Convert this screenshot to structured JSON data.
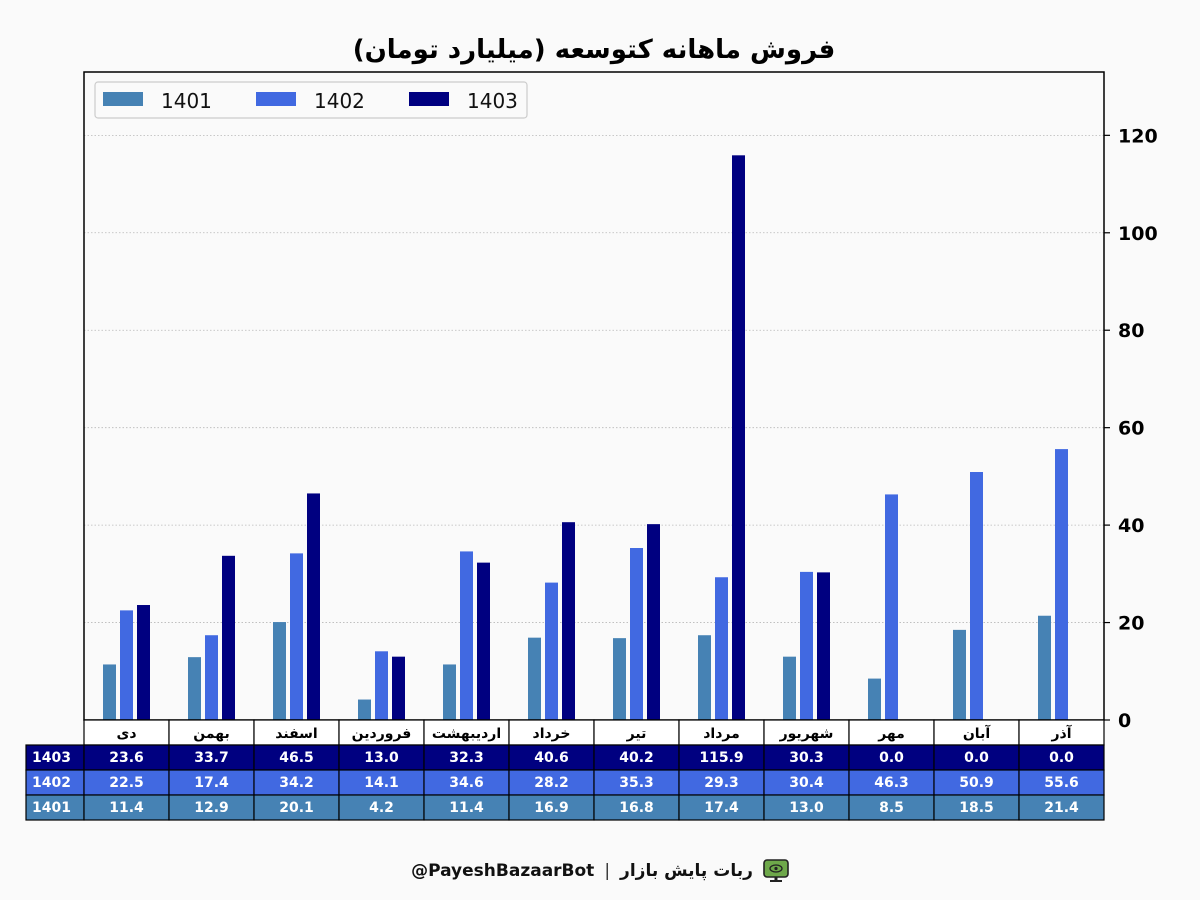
{
  "chart_data": {
    "type": "bar",
    "title": "فروش ماهانه کتوسعه (میلیارد تومان)",
    "xlabel": "",
    "ylabel": "",
    "ylim": [
      0,
      133
    ],
    "y_ticks": [
      0,
      20,
      40,
      60,
      80,
      100,
      120
    ],
    "y_axis_side": "right",
    "grid": "horizontal-dotted",
    "legend_position": "top-left",
    "categories": [
      "دی",
      "بهمن",
      "اسفند",
      "فروردین",
      "اردیبهشت",
      "خرداد",
      "تیر",
      "مرداد",
      "شهریور",
      "مهر",
      "آبان",
      "آذر"
    ],
    "series": [
      {
        "name": "1401",
        "color": "#4682b4",
        "values": [
          11.4,
          12.9,
          20.1,
          4.2,
          11.4,
          16.9,
          16.8,
          17.4,
          13.0,
          8.5,
          18.5,
          21.4
        ],
        "labels": [
          "11.4",
          "12.9",
          "20.1",
          "4.2",
          "11.4",
          "16.9",
          "16.8",
          "17.4",
          "13.0",
          "8.5",
          "18.5",
          "21.4"
        ]
      },
      {
        "name": "1402",
        "color": "#4169e1",
        "values": [
          22.5,
          17.4,
          34.2,
          14.1,
          34.6,
          28.2,
          35.3,
          29.3,
          30.4,
          46.3,
          50.9,
          55.6
        ],
        "labels": [
          "22.5",
          "17.4",
          "34.2",
          "14.1",
          "34.6",
          "28.2",
          "35.3",
          "29.3",
          "30.4",
          "46.3",
          "50.9",
          "55.6"
        ]
      },
      {
        "name": "1403",
        "color": "#000080",
        "values": [
          23.6,
          33.7,
          46.5,
          13.0,
          32.3,
          40.6,
          40.2,
          115.9,
          30.3,
          0.0,
          0.0,
          0.0
        ],
        "labels": [
          "23.6",
          "33.7",
          "46.5",
          "13.0",
          "32.3",
          "40.6",
          "40.2",
          "115.9",
          "30.3",
          "0.0",
          "0.0",
          "0.0"
        ]
      }
    ],
    "table_row_order": [
      "1403",
      "1402",
      "1401"
    ]
  },
  "footer": {
    "bot_handle": "@PayeshBazaarBot",
    "separator": "|",
    "bot_name": "ربات پایش بازار",
    "icon": "monitor-eye-icon"
  }
}
